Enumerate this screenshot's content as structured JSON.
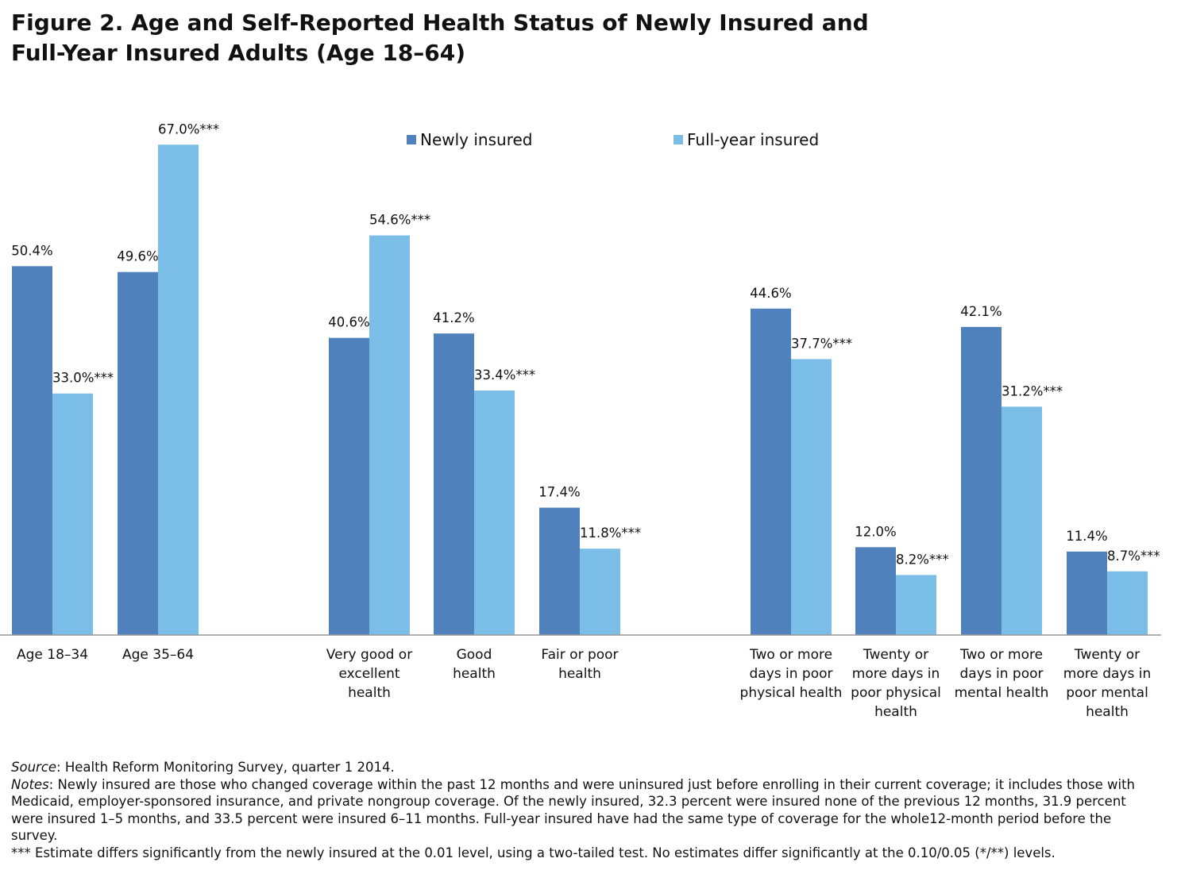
{
  "title": {
    "line1": "Figure 2. Age and Self-Reported Health Status of Newly Insured and",
    "line2": "Full-Year Insured Adults (Age 18–64)"
  },
  "chart_data": {
    "type": "bar",
    "colors": {
      "newly": "#4f81bd",
      "full": "#7abde6"
    },
    "series": [
      {
        "name": "Newly insured",
        "values": [
          50.4,
          49.6,
          40.6,
          41.2,
          17.4,
          44.6,
          12.0,
          42.1,
          11.4
        ]
      },
      {
        "name": "Full-year insured",
        "values": [
          33.0,
          67.0,
          54.6,
          33.4,
          11.8,
          37.7,
          8.2,
          31.2,
          8.7
        ]
      }
    ],
    "categories": [
      "Age 18–34",
      "Age 35–64",
      "Very good or excellent health",
      "Good health",
      "Fair or poor health",
      "Two or more days in poor physical health",
      "Twenty or more days in poor physical health",
      "Two or more days in poor mental health",
      "Twenty or more days in poor mental health"
    ],
    "category_lines": [
      [
        "Age 18–34"
      ],
      [
        "Age 35–64"
      ],
      [
        "Very good or",
        "excellent",
        "health"
      ],
      [
        "Good",
        "health"
      ],
      [
        "Fair or poor",
        "health"
      ],
      [
        "Two or more",
        "days in poor",
        "physical health"
      ],
      [
        "Twenty or",
        "more days in",
        "poor physical",
        "health"
      ],
      [
        "Two or more",
        "days in poor",
        "mental health"
      ],
      [
        "Twenty or",
        "more days in",
        "poor mental",
        "health"
      ]
    ],
    "labels": {
      "newly": [
        "50.4%",
        "49.6%",
        "40.6%",
        "41.2%",
        "17.4%",
        "44.6%",
        "12.0%",
        "42.1%",
        "11.4%"
      ],
      "full": [
        "33.0%***",
        "67.0%***",
        "54.6%***",
        "33.4%***",
        "11.8%***",
        "37.7%***",
        "8.2%***",
        "31.2%***",
        "8.7%***"
      ]
    },
    "ylim": [
      0,
      100
    ],
    "grid": false,
    "legend": "top-center"
  },
  "footer": {
    "source_label": "Source",
    "source_text": ": Health Reform Monitoring Survey, quarter 1 2014.",
    "notes_label": "Notes",
    "notes_text": ": Newly insured are those who changed coverage within the past 12 months and were uninsured just before enrolling in their current coverage; it includes those with Medicaid, employer-sponsored insurance, and private nongroup coverage. Of the newly insured, 32.3 percent were insured none of the previous 12 months, 31.9 percent were insured 1–5 months, and 33.5 percent were insured 6–11 months. Full-year insured have had the same type of coverage for the whole12-month period before the survey.",
    "significance_text": "*** Estimate differs significantly from the newly insured at the 0.01 level, using a two-tailed test. No estimates differ significantly at the 0.10/0.05 (*/**) levels."
  }
}
